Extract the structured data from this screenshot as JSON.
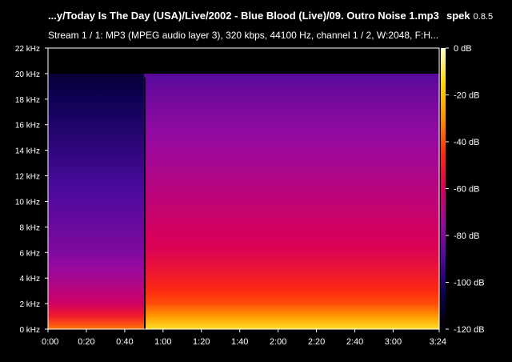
{
  "header": {
    "title": "...y/Today Is The Day (USA)/Live/2002 - Blue Blood (Live)/09. Outro Noise 1.mp3",
    "app_name": "spek",
    "app_version": "0.8.5",
    "stream_info": "Stream 1 / 1: MP3 (MPEG audio layer 3), 320 kbps, 44100 Hz, channel 1 / 2, W:2048, F:H..."
  },
  "chart_data": {
    "type": "heatmap",
    "title": "...y/Today Is The Day (USA)/Live/2002 - Blue Blood (Live)/09. Outro Noise 1.mp3",
    "x_axis": {
      "min_seconds": 0,
      "max_seconds": 204,
      "ticks": [
        {
          "label": "0:00",
          "seconds": 0
        },
        {
          "label": "0:20",
          "seconds": 20
        },
        {
          "label": "0:40",
          "seconds": 40
        },
        {
          "label": "1:00",
          "seconds": 60
        },
        {
          "label": "1:20",
          "seconds": 80
        },
        {
          "label": "1:40",
          "seconds": 100
        },
        {
          "label": "2:00",
          "seconds": 120
        },
        {
          "label": "2:20",
          "seconds": 140
        },
        {
          "label": "2:40",
          "seconds": 160
        },
        {
          "label": "3:00",
          "seconds": 180
        },
        {
          "label": "3:24",
          "seconds": 204
        }
      ]
    },
    "y_axis": {
      "min_khz": 0,
      "max_khz": 22,
      "ticks": [
        {
          "label": "0 kHz",
          "khz": 0
        },
        {
          "label": "2 kHz",
          "khz": 2
        },
        {
          "label": "4 kHz",
          "khz": 4
        },
        {
          "label": "6 kHz",
          "khz": 6
        },
        {
          "label": "8 kHz",
          "khz": 8
        },
        {
          "label": "10 kHz",
          "khz": 10
        },
        {
          "label": "12 kHz",
          "khz": 12
        },
        {
          "label": "14 kHz",
          "khz": 14
        },
        {
          "label": "16 kHz",
          "khz": 16
        },
        {
          "label": "18 kHz",
          "khz": 18
        },
        {
          "label": "20 kHz",
          "khz": 20
        },
        {
          "label": "22 kHz",
          "khz": 22
        }
      ]
    },
    "color_scale": {
      "min_db": -120,
      "max_db": 0,
      "ticks": [
        {
          "label": "0 dB",
          "db": 0
        },
        {
          "label": "-20 dB",
          "db": -20
        },
        {
          "label": "-40 dB",
          "db": -40
        },
        {
          "label": "-60 dB",
          "db": -60
        },
        {
          "label": "-80 dB",
          "db": -80
        },
        {
          "label": "-100 dB",
          "db": -100
        },
        {
          "label": "-120 dB",
          "db": -120
        }
      ],
      "colors": [
        "#000000",
        "#0a0050",
        "#4a0a9c",
        "#9a0aa0",
        "#d8005a",
        "#ff2a10",
        "#ff9000",
        "#ffd800",
        "#ffffd0"
      ]
    },
    "spectrum": {
      "cutoff_khz": 20,
      "quiet_until_seconds": 50,
      "gap_seconds": 50.5,
      "level_profile": [
        {
          "khz": 0,
          "db": -12
        },
        {
          "khz": 1,
          "db": -28
        },
        {
          "khz": 2,
          "db": -40
        },
        {
          "khz": 4,
          "db": -50
        },
        {
          "khz": 6,
          "db": -58
        },
        {
          "khz": 10,
          "db": -66
        },
        {
          "khz": 14,
          "db": -74
        },
        {
          "khz": 18,
          "db": -82
        },
        {
          "khz": 20,
          "db": -88
        }
      ]
    }
  }
}
